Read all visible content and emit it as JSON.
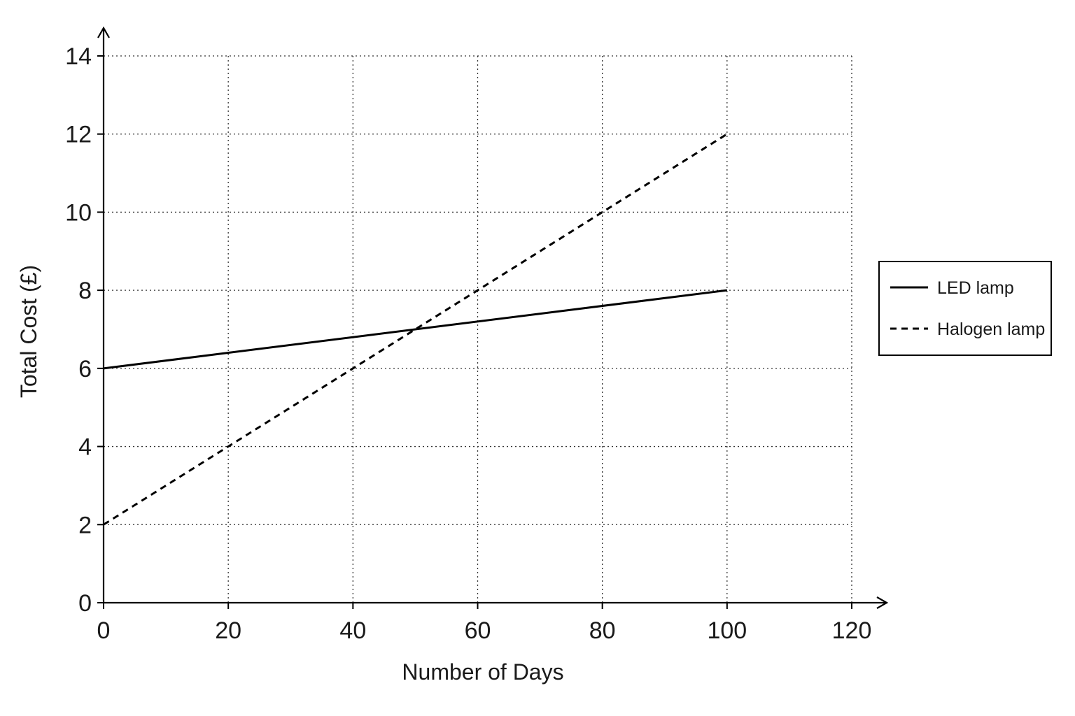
{
  "chart_data": {
    "type": "line",
    "title": "",
    "xlabel": "Number of Days",
    "ylabel": "Total Cost (£)",
    "xlim": [
      0,
      120
    ],
    "ylim": [
      0,
      14
    ],
    "x_ticks": [
      0,
      20,
      40,
      60,
      80,
      100,
      120
    ],
    "y_ticks": [
      0,
      2,
      4,
      6,
      8,
      10,
      12,
      14
    ],
    "grid": true,
    "legend_position": "right",
    "series": [
      {
        "name": "LED lamp",
        "style": "solid",
        "color": "#000000",
        "x": [
          0,
          100
        ],
        "y": [
          6,
          8
        ]
      },
      {
        "name": "Halogen lamp",
        "style": "dashed",
        "color": "#000000",
        "x": [
          0,
          100
        ],
        "y": [
          2,
          12
        ]
      }
    ]
  }
}
